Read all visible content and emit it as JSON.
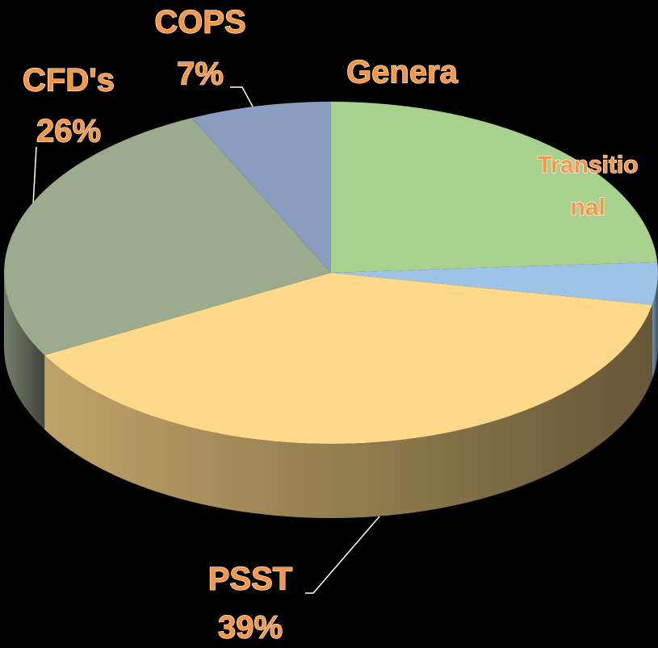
{
  "chart_data": {
    "type": "pie3d",
    "categories": [
      "Genera",
      "Transitio\nnal",
      "PSST",
      "CFD's",
      "COPS"
    ],
    "values": [
      24,
      4,
      39,
      26,
      7
    ],
    "value_labels": [
      null,
      null,
      "39%",
      "26%",
      "7%"
    ],
    "colors": [
      "#a9d18e",
      "#9dc3e6",
      "#ffd98a",
      "#9aab8e",
      "#8a9cc0"
    ]
  }
}
